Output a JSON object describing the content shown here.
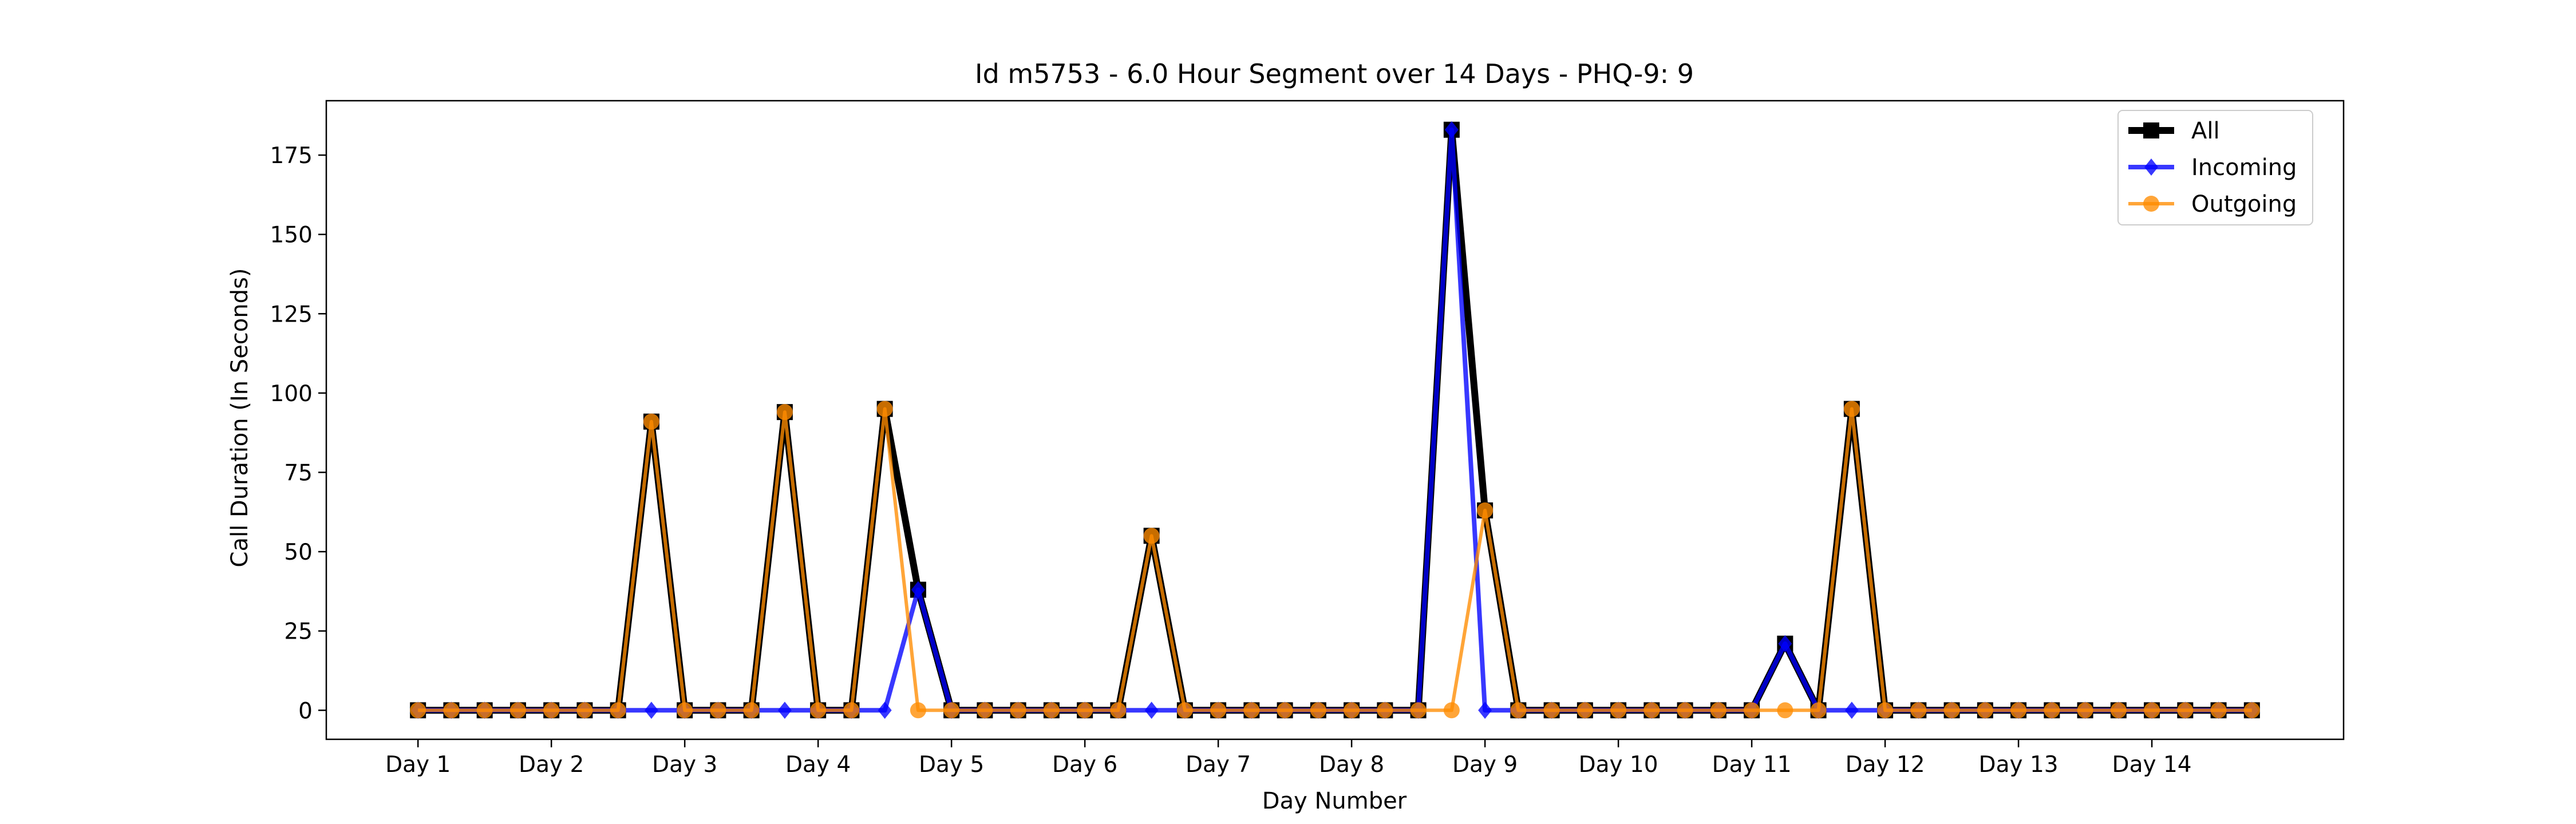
{
  "chart_data": {
    "type": "line",
    "title": "Id m5753 - 6.0 Hour Segment over 14 Days - PHQ-9: 9",
    "xlabel": "Day Number",
    "ylabel": "Call Duration (In Seconds)",
    "ylim": [
      -9.15,
      192.15
    ],
    "y_ticks": [
      0,
      25,
      50,
      75,
      100,
      125,
      150,
      175
    ],
    "x_ticks": [
      {
        "x": 0,
        "label": "Day 1"
      },
      {
        "x": 4,
        "label": "Day 2"
      },
      {
        "x": 8,
        "label": "Day 3"
      },
      {
        "x": 12,
        "label": "Day 4"
      },
      {
        "x": 16,
        "label": "Day 5"
      },
      {
        "x": 20,
        "label": "Day 6"
      },
      {
        "x": 24,
        "label": "Day 7"
      },
      {
        "x": 28,
        "label": "Day 8"
      },
      {
        "x": 32,
        "label": "Day 9"
      },
      {
        "x": 36,
        "label": "Day 10"
      },
      {
        "x": 40,
        "label": "Day 11"
      },
      {
        "x": 44,
        "label": "Day 12"
      },
      {
        "x": 48,
        "label": "Day 13"
      },
      {
        "x": 52,
        "label": "Day 14"
      }
    ],
    "x": [
      0,
      1,
      2,
      3,
      4,
      5,
      6,
      7,
      8,
      9,
      10,
      11,
      12,
      13,
      14,
      15,
      16,
      17,
      18,
      19,
      20,
      21,
      22,
      23,
      24,
      25,
      26,
      27,
      28,
      29,
      30,
      31,
      32,
      33,
      34,
      35,
      36,
      37,
      38,
      39,
      40,
      41,
      42,
      43,
      44,
      45,
      46,
      47,
      48,
      49,
      50,
      51,
      52,
      53,
      54,
      55
    ],
    "legend_position": "top-right",
    "grid": false,
    "series": [
      {
        "name": "All",
        "color": "#000000",
        "marker": "square",
        "values": [
          0,
          0,
          0,
          0,
          0,
          0,
          0,
          91,
          0,
          0,
          0,
          94,
          0,
          0,
          95,
          38,
          0,
          0,
          0,
          0,
          0,
          0,
          55,
          0,
          0,
          0,
          0,
          0,
          0,
          0,
          0,
          183,
          63,
          0,
          0,
          0,
          0,
          0,
          0,
          0,
          0,
          21,
          0,
          95,
          0,
          0,
          0,
          0,
          0,
          0,
          0,
          0,
          0,
          0,
          0,
          0
        ]
      },
      {
        "name": "Incoming",
        "color": "#0000ff",
        "marker": "diamond",
        "values": [
          0,
          0,
          0,
          0,
          0,
          0,
          0,
          0,
          0,
          0,
          0,
          0,
          0,
          0,
          0,
          38,
          0,
          0,
          0,
          0,
          0,
          0,
          0,
          0,
          0,
          0,
          0,
          0,
          0,
          0,
          0,
          183,
          0,
          0,
          0,
          0,
          0,
          0,
          0,
          0,
          0,
          21,
          0,
          0,
          0,
          0,
          0,
          0,
          0,
          0,
          0,
          0,
          0,
          0,
          0,
          0
        ]
      },
      {
        "name": "Outgoing",
        "color": "#ff8c00",
        "marker": "circle",
        "values": [
          0,
          0,
          0,
          0,
          0,
          0,
          0,
          91,
          0,
          0,
          0,
          94,
          0,
          0,
          95,
          0,
          0,
          0,
          0,
          0,
          0,
          0,
          55,
          0,
          0,
          0,
          0,
          0,
          0,
          0,
          0,
          0,
          63,
          0,
          0,
          0,
          0,
          0,
          0,
          0,
          0,
          0,
          0,
          95,
          0,
          0,
          0,
          0,
          0,
          0,
          0,
          0,
          0,
          0,
          0,
          0
        ]
      }
    ]
  }
}
